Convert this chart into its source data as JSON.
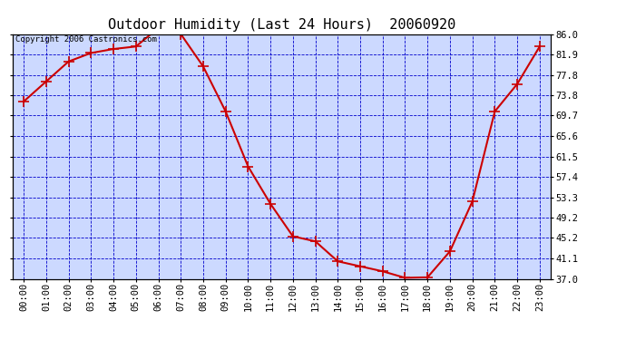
{
  "title": "Outdoor Humidity (Last 24 Hours)  20060920",
  "copyright": "Copyright 2006 Castronics.com",
  "x_labels": [
    "00:00",
    "01:00",
    "02:00",
    "03:00",
    "04:00",
    "05:00",
    "06:00",
    "07:00",
    "08:00",
    "09:00",
    "10:00",
    "11:00",
    "12:00",
    "13:00",
    "14:00",
    "15:00",
    "16:00",
    "17:00",
    "18:00",
    "19:00",
    "20:00",
    "21:00",
    "22:00",
    "23:00"
  ],
  "y_values": [
    72.5,
    76.5,
    80.5,
    82.2,
    83.0,
    83.5,
    87.2,
    86.0,
    79.5,
    70.5,
    59.5,
    52.0,
    45.5,
    44.5,
    40.5,
    39.5,
    38.5,
    37.2,
    37.3,
    42.5,
    52.5,
    70.5,
    76.0,
    83.5
  ],
  "line_color": "#cc0000",
  "marker_color": "#cc0000",
  "bg_color": "#ccd9ff",
  "grid_color": "#0000cc",
  "border_color": "#000000",
  "title_color": "#000000",
  "ytick_labels": [
    37.0,
    41.1,
    45.2,
    49.2,
    53.3,
    57.4,
    61.5,
    65.6,
    69.7,
    73.8,
    77.8,
    81.9,
    86.0
  ],
  "ymin": 37.0,
  "ymax": 86.0,
  "marker_size": 4,
  "line_width": 1.5,
  "title_fontsize": 11,
  "copyright_fontsize": 6.5,
  "tick_fontsize": 7.5,
  "fig_width": 6.9,
  "fig_height": 3.75,
  "dpi": 100
}
